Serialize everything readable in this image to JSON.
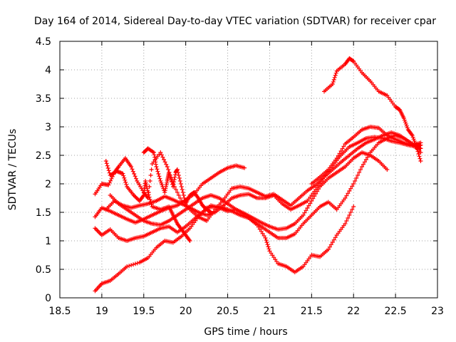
{
  "chart_data": {
    "type": "scatter",
    "title": "Day 164 of 2014, Sidereal Day-to-day VTEC variation (SDTVAR) for receiver cpar",
    "xlabel": "GPS time / hours",
    "ylabel": "SDTVAR / TECUs",
    "xlim": [
      18.5,
      23
    ],
    "ylim": [
      0,
      4.5
    ],
    "xticks": [
      18.5,
      19,
      19.5,
      20,
      20.5,
      21,
      21.5,
      22,
      22.5,
      23
    ],
    "yticks": [
      0,
      0.5,
      1,
      1.5,
      2,
      2.5,
      3,
      3.5,
      4,
      4.5
    ],
    "xtick_labels": [
      "18.5",
      "19",
      "19.5",
      "20",
      "20.5",
      "21",
      "21.5",
      "22",
      "22.5",
      "23"
    ],
    "ytick_labels": [
      "0",
      "0.5",
      "1",
      "1.5",
      "2",
      "2.5",
      "3",
      "3.5",
      "4",
      "4.5"
    ],
    "grid": true,
    "marker": "+",
    "color": "#ff0000",
    "series": [
      {
        "name": "track-1",
        "points": [
          [
            18.92,
            0.12
          ],
          [
            19.0,
            0.25
          ],
          [
            19.1,
            0.3
          ],
          [
            19.2,
            0.42
          ],
          [
            19.3,
            0.55
          ],
          [
            19.45,
            0.62
          ],
          [
            19.55,
            0.7
          ],
          [
            19.65,
            0.88
          ],
          [
            19.75,
            1.0
          ],
          [
            19.85,
            0.97
          ],
          [
            19.95,
            1.08
          ],
          [
            20.05,
            1.22
          ],
          [
            20.15,
            1.42
          ],
          [
            20.25,
            1.58
          ],
          [
            20.35,
            1.6
          ],
          [
            20.45,
            1.58
          ],
          [
            20.55,
            1.52
          ],
          [
            20.65,
            1.45
          ],
          [
            20.75,
            1.4
          ],
          [
            20.85,
            1.28
          ],
          [
            20.95,
            1.05
          ],
          [
            21.0,
            0.82
          ],
          [
            21.1,
            0.6
          ],
          [
            21.2,
            0.55
          ],
          [
            21.3,
            0.45
          ],
          [
            21.4,
            0.55
          ],
          [
            21.5,
            0.75
          ],
          [
            21.6,
            0.72
          ],
          [
            21.7,
            0.85
          ],
          [
            21.8,
            1.1
          ],
          [
            21.9,
            1.3
          ],
          [
            22.0,
            1.6
          ]
        ]
      },
      {
        "name": "track-2",
        "points": [
          [
            18.92,
            1.22
          ],
          [
            19.0,
            1.1
          ],
          [
            19.1,
            1.2
          ],
          [
            19.2,
            1.05
          ],
          [
            19.3,
            1.0
          ],
          [
            19.4,
            1.05
          ],
          [
            19.5,
            1.08
          ],
          [
            19.6,
            1.15
          ],
          [
            19.7,
            1.22
          ],
          [
            19.8,
            1.25
          ],
          [
            19.9,
            1.15
          ],
          [
            20.0,
            1.25
          ],
          [
            20.1,
            1.38
          ],
          [
            20.2,
            1.5
          ],
          [
            20.3,
            1.62
          ],
          [
            20.4,
            1.58
          ],
          [
            20.5,
            1.52
          ],
          [
            20.6,
            1.55
          ],
          [
            20.7,
            1.45
          ],
          [
            20.8,
            1.35
          ],
          [
            20.9,
            1.25
          ],
          [
            21.0,
            1.15
          ],
          [
            21.1,
            1.05
          ],
          [
            21.2,
            1.05
          ],
          [
            21.3,
            1.12
          ],
          [
            21.4,
            1.3
          ],
          [
            21.5,
            1.45
          ],
          [
            21.6,
            1.6
          ],
          [
            21.7,
            1.68
          ],
          [
            21.8,
            1.55
          ],
          [
            21.9,
            1.75
          ],
          [
            22.0,
            2.0
          ],
          [
            22.1,
            2.3
          ],
          [
            22.2,
            2.55
          ],
          [
            22.3,
            2.72
          ],
          [
            22.4,
            2.8
          ],
          [
            22.5,
            2.85
          ],
          [
            22.6,
            2.8
          ],
          [
            22.7,
            2.7
          ],
          [
            22.8,
            2.55
          ]
        ]
      },
      {
        "name": "track-3",
        "points": [
          [
            18.92,
            1.42
          ],
          [
            19.0,
            1.58
          ],
          [
            19.1,
            1.52
          ],
          [
            19.2,
            1.45
          ],
          [
            19.3,
            1.38
          ],
          [
            19.4,
            1.32
          ],
          [
            19.5,
            1.38
          ],
          [
            19.6,
            1.45
          ],
          [
            19.7,
            1.52
          ],
          [
            19.8,
            1.58
          ],
          [
            19.9,
            1.62
          ],
          [
            20.0,
            1.72
          ],
          [
            20.1,
            1.82
          ],
          [
            20.2,
            2.0
          ],
          [
            20.3,
            2.1
          ],
          [
            20.4,
            2.2
          ],
          [
            20.5,
            2.28
          ],
          [
            20.6,
            2.32
          ],
          [
            20.7,
            2.28
          ]
        ]
      },
      {
        "name": "track-4",
        "points": [
          [
            18.92,
            1.82
          ],
          [
            19.0,
            2.0
          ],
          [
            19.08,
            1.98
          ],
          [
            19.15,
            2.2
          ],
          [
            19.2,
            2.3
          ],
          [
            19.28,
            2.45
          ],
          [
            19.35,
            2.3
          ],
          [
            19.42,
            2.05
          ],
          [
            19.5,
            1.85
          ],
          [
            19.55,
            1.75
          ],
          [
            19.6,
            2.35
          ],
          [
            19.7,
            2.55
          ],
          [
            19.78,
            2.3
          ],
          [
            19.85,
            2.0
          ],
          [
            19.95,
            1.7
          ],
          [
            20.05,
            1.55
          ],
          [
            20.15,
            1.42
          ],
          [
            20.25,
            1.35
          ],
          [
            20.35,
            1.55
          ],
          [
            20.45,
            1.72
          ],
          [
            20.55,
            1.92
          ],
          [
            20.65,
            1.95
          ],
          [
            20.75,
            1.92
          ],
          [
            20.85,
            1.85
          ],
          [
            20.95,
            1.78
          ],
          [
            21.05,
            1.82
          ],
          [
            21.15,
            1.72
          ],
          [
            21.25,
            1.62
          ],
          [
            21.35,
            1.75
          ],
          [
            21.45,
            1.88
          ],
          [
            21.55,
            1.98
          ],
          [
            21.65,
            2.12
          ],
          [
            21.75,
            2.25
          ],
          [
            21.85,
            2.38
          ],
          [
            21.95,
            2.5
          ],
          [
            22.05,
            2.62
          ],
          [
            22.15,
            2.72
          ],
          [
            22.25,
            2.78
          ],
          [
            22.35,
            2.85
          ],
          [
            22.45,
            2.9
          ],
          [
            22.55,
            2.85
          ],
          [
            22.65,
            2.75
          ],
          [
            22.75,
            2.65
          ],
          [
            22.8,
            2.62
          ]
        ]
      },
      {
        "name": "track-5",
        "points": [
          [
            19.05,
            1.55
          ],
          [
            19.15,
            1.7
          ],
          [
            19.25,
            1.62
          ],
          [
            19.35,
            1.58
          ],
          [
            19.45,
            1.62
          ],
          [
            19.55,
            1.65
          ],
          [
            19.65,
            1.7
          ],
          [
            19.75,
            1.78
          ],
          [
            19.85,
            1.72
          ],
          [
            19.95,
            1.65
          ],
          [
            20.05,
            1.58
          ],
          [
            20.15,
            1.5
          ],
          [
            20.25,
            1.45
          ],
          [
            20.35,
            1.5
          ],
          [
            20.45,
            1.62
          ],
          [
            20.55,
            1.75
          ],
          [
            20.65,
            1.8
          ],
          [
            20.75,
            1.82
          ],
          [
            20.85,
            1.75
          ],
          [
            20.95,
            1.75
          ],
          [
            21.05,
            1.8
          ],
          [
            21.15,
            1.65
          ],
          [
            21.25,
            1.55
          ],
          [
            21.35,
            1.62
          ],
          [
            21.45,
            1.7
          ],
          [
            21.55,
            1.9
          ],
          [
            21.65,
            2.12
          ],
          [
            21.75,
            2.32
          ],
          [
            21.85,
            2.5
          ],
          [
            21.95,
            2.65
          ],
          [
            22.05,
            2.72
          ],
          [
            22.15,
            2.8
          ],
          [
            22.25,
            2.82
          ],
          [
            22.35,
            2.8
          ],
          [
            22.45,
            2.75
          ],
          [
            22.55,
            2.72
          ],
          [
            22.65,
            2.68
          ],
          [
            22.75,
            2.65
          ],
          [
            22.8,
            2.68
          ]
        ]
      },
      {
        "name": "track-6",
        "points": [
          [
            19.1,
            1.8
          ],
          [
            19.2,
            1.65
          ],
          [
            19.3,
            1.55
          ],
          [
            19.4,
            1.45
          ],
          [
            19.5,
            1.35
          ],
          [
            19.6,
            1.3
          ],
          [
            19.7,
            1.28
          ],
          [
            19.8,
            1.35
          ],
          [
            19.9,
            1.45
          ],
          [
            20.0,
            1.55
          ],
          [
            20.1,
            1.65
          ],
          [
            20.2,
            1.75
          ],
          [
            20.3,
            1.8
          ],
          [
            20.4,
            1.75
          ],
          [
            20.5,
            1.65
          ],
          [
            20.6,
            1.55
          ],
          [
            20.7,
            1.48
          ],
          [
            20.8,
            1.4
          ],
          [
            20.9,
            1.32
          ],
          [
            21.0,
            1.25
          ],
          [
            21.1,
            1.2
          ],
          [
            21.2,
            1.22
          ],
          [
            21.3,
            1.3
          ],
          [
            21.4,
            1.45
          ],
          [
            21.5,
            1.7
          ],
          [
            21.6,
            1.95
          ],
          [
            21.7,
            2.1
          ],
          [
            21.8,
            2.2
          ],
          [
            21.9,
            2.3
          ],
          [
            22.0,
            2.45
          ],
          [
            22.1,
            2.55
          ],
          [
            22.2,
            2.5
          ],
          [
            22.3,
            2.4
          ],
          [
            22.4,
            2.25
          ]
        ]
      },
      {
        "name": "track-7",
        "points": [
          [
            19.05,
            2.4
          ],
          [
            19.1,
            2.15
          ],
          [
            19.18,
            2.22
          ],
          [
            19.25,
            2.18
          ],
          [
            19.3,
            1.95
          ],
          [
            19.38,
            1.8
          ],
          [
            19.45,
            1.7
          ],
          [
            19.5,
            1.8
          ],
          [
            19.52,
            2.05
          ],
          [
            19.55,
            1.85
          ],
          [
            19.6,
            1.6
          ],
          [
            19.7,
            1.55
          ],
          [
            19.8,
            1.6
          ],
          [
            19.85,
            1.45
          ],
          [
            19.9,
            1.3
          ],
          [
            19.95,
            1.2
          ],
          [
            20.0,
            1.1
          ],
          [
            20.05,
            1.0
          ]
        ]
      },
      {
        "name": "track-8",
        "points": [
          [
            19.5,
            2.55
          ],
          [
            19.55,
            2.62
          ],
          [
            19.62,
            2.55
          ],
          [
            19.65,
            2.3
          ],
          [
            19.7,
            2.05
          ],
          [
            19.75,
            1.85
          ],
          [
            19.78,
            2.05
          ],
          [
            19.8,
            2.2
          ],
          [
            19.85,
            1.95
          ],
          [
            19.88,
            2.2
          ],
          [
            19.9,
            2.25
          ],
          [
            19.95,
            1.95
          ],
          [
            20.0,
            1.65
          ],
          [
            20.05,
            1.8
          ],
          [
            20.1,
            1.85
          ],
          [
            20.15,
            1.75
          ],
          [
            20.2,
            1.62
          ],
          [
            20.25,
            1.55
          ],
          [
            20.3,
            1.5
          ]
        ]
      },
      {
        "name": "track-9",
        "points": [
          [
            21.65,
            3.62
          ],
          [
            21.75,
            3.75
          ],
          [
            21.8,
            3.98
          ],
          [
            21.9,
            4.1
          ],
          [
            21.95,
            4.2
          ],
          [
            22.0,
            4.15
          ],
          [
            22.1,
            3.95
          ],
          [
            22.2,
            3.8
          ],
          [
            22.3,
            3.62
          ],
          [
            22.4,
            3.55
          ],
          [
            22.5,
            3.35
          ],
          [
            22.55,
            3.3
          ],
          [
            22.6,
            3.15
          ],
          [
            22.65,
            2.95
          ],
          [
            22.7,
            2.85
          ],
          [
            22.75,
            2.65
          ],
          [
            22.8,
            2.4
          ]
        ]
      },
      {
        "name": "track-10",
        "points": [
          [
            21.5,
            2.0
          ],
          [
            21.6,
            2.12
          ],
          [
            21.7,
            2.25
          ],
          [
            21.8,
            2.45
          ],
          [
            21.9,
            2.7
          ],
          [
            22.0,
            2.82
          ],
          [
            22.1,
            2.95
          ],
          [
            22.2,
            3.0
          ],
          [
            22.3,
            2.98
          ],
          [
            22.4,
            2.85
          ],
          [
            22.5,
            2.78
          ],
          [
            22.6,
            2.72
          ],
          [
            22.7,
            2.68
          ],
          [
            22.8,
            2.72
          ]
        ]
      }
    ]
  }
}
